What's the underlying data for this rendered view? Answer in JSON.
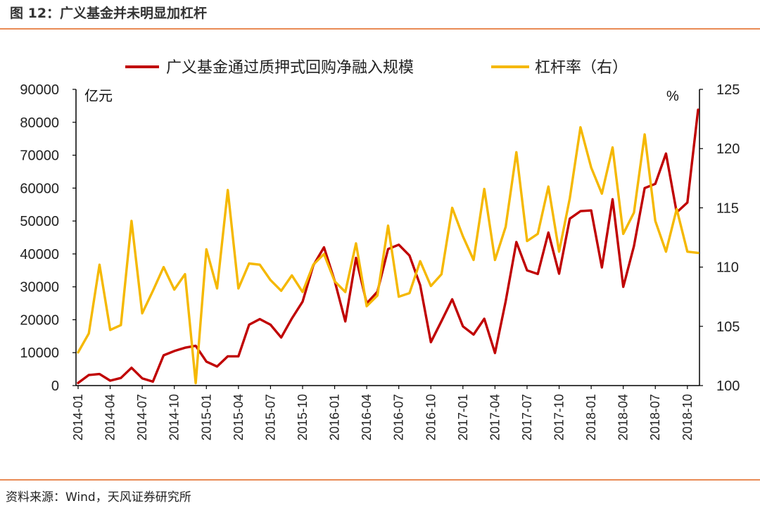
{
  "figure": {
    "title": "图 12：广义基金并未明显加杠杆",
    "source": "资料来源：Wind，天风证券研究所"
  },
  "colors": {
    "left_series": "#c00000",
    "right_series": "#f5b800",
    "rule": "#e98b55",
    "axis": "#000000"
  },
  "chart_data": {
    "type": "line",
    "title": "",
    "left_unit": "亿元",
    "right_unit": "%",
    "left_ylim": [
      0,
      90000
    ],
    "left_ticks": [
      0,
      10000,
      20000,
      30000,
      40000,
      50000,
      60000,
      70000,
      80000,
      90000
    ],
    "right_ylim": [
      100,
      125
    ],
    "right_ticks": [
      100,
      105,
      110,
      115,
      120,
      125
    ],
    "x_tick_labels": [
      "2014-01",
      "2014-04",
      "2014-07",
      "2014-10",
      "2015-01",
      "2015-04",
      "2015-07",
      "2015-10",
      "2016-01",
      "2016-04",
      "2016-07",
      "2016-10",
      "2017-01",
      "2017-04",
      "2017-07",
      "2017-10",
      "2018-01",
      "2018-04",
      "2018-07",
      "2018-10"
    ],
    "legend_position": "top",
    "series": [
      {
        "name": "广义基金通过质押式回购净融入规模",
        "axis": "left",
        "values": [
          800,
          3200,
          3500,
          1500,
          2300,
          5400,
          2200,
          1200,
          9200,
          10500,
          11500,
          12100,
          7300,
          5800,
          8900,
          8900,
          18500,
          20200,
          18500,
          14600,
          20400,
          25500,
          36500,
          42000,
          31800,
          19500,
          38800,
          25000,
          28500,
          41500,
          42800,
          39500,
          30500,
          13200,
          19600,
          26200,
          18000,
          15500,
          20300,
          9900,
          25600,
          43600,
          35000,
          33900,
          46500,
          34000,
          50700,
          53000,
          53200,
          35900,
          56600,
          30000,
          42400,
          60000,
          61300,
          70500,
          52600,
          55600,
          83800
        ],
        "start": "2014-01"
      },
      {
        "name": "杠杆率（右）",
        "axis": "right",
        "values": [
          102.8,
          104.4,
          110.2,
          104.7,
          105.1,
          113.9,
          106.1,
          108,
          110,
          108.1,
          109.4,
          100.2,
          111.5,
          108.2,
          116.5,
          108.2,
          110.3,
          110.2,
          108.9,
          108,
          109.3,
          107.9,
          110.2,
          111.1,
          108.8,
          107.9,
          112,
          106.7,
          107.6,
          113.5,
          107.5,
          107.8,
          110.5,
          108.4,
          109.4,
          115,
          112.6,
          110.6,
          116.6,
          110.6,
          113.4,
          119.7,
          112.2,
          112.8,
          116.8,
          111.3,
          115.8,
          121.8,
          118.4,
          116.2,
          120.1,
          112.8,
          114.6,
          121.2,
          113.9,
          111.3,
          114.9,
          111.3,
          111.2
        ],
        "start": "2014-01"
      }
    ]
  }
}
